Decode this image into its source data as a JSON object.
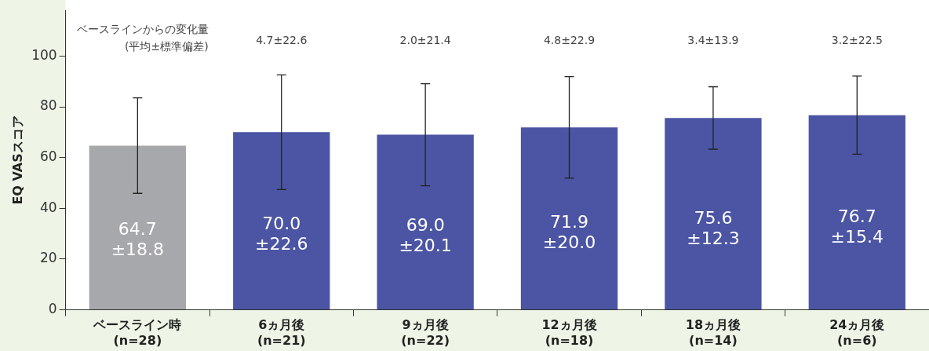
{
  "chart_data": {
    "type": "bar",
    "ylabel": "EQ VASスコア",
    "categories": [
      "ベースライン時\n(n=28)",
      "6ヵ月後\n(n=21)",
      "9ヵ月後\n(n=22)",
      "12ヵ月後\n(n=18)",
      "18ヵ月後\n(n=14)",
      "24ヵ月後\n(n=6)"
    ],
    "values": [
      64.7,
      70.0,
      69.0,
      71.9,
      75.6,
      76.7
    ],
    "colors": [
      "#a7a8ab",
      "#4b55a3",
      "#4b55a3",
      "#4b55a3",
      "#4b55a3",
      "#4b55a3"
    ],
    "errors": [
      18.8,
      22.6,
      20.1,
      20.0,
      12.3,
      15.4
    ],
    "value_labels": [
      "64.7\n±18.8",
      "70.0\n±22.6",
      "69.0\n±20.1",
      "71.9\n±20.0",
      "75.6\n±12.3",
      "76.7\n±15.4"
    ],
    "annotations": [
      "ベースラインからの変化量\n(平均±標準偏差)",
      "4.7±22.6",
      "2.0±21.4",
      "4.8±22.9",
      "3.4±13.9",
      "3.2±22.5"
    ],
    "ylim": [
      0,
      118
    ],
    "yticks": [
      0,
      20,
      40,
      60,
      80,
      100
    ],
    "grid": false,
    "legend": false
  }
}
